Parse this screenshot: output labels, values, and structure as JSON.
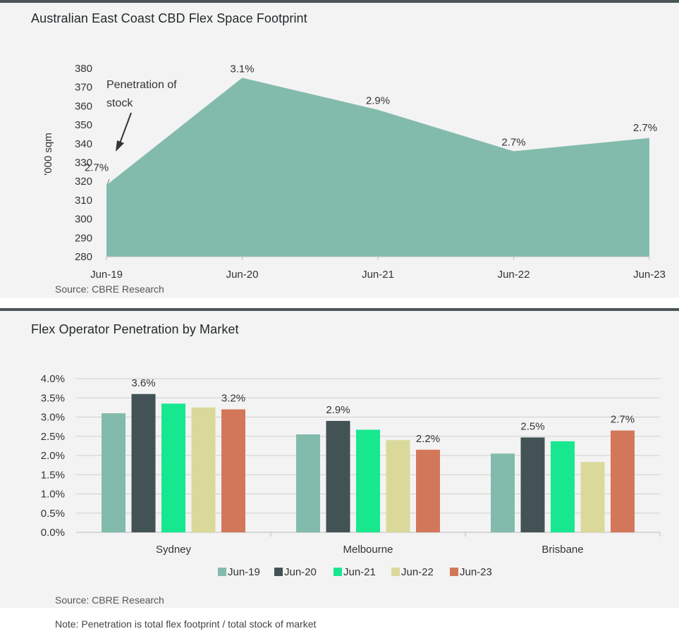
{
  "charts": {
    "area": {
      "title": "Australian East Coast CBD Flex Space Footprint",
      "source": "Source: CBRE Research",
      "annotation_line1": "Penetration of",
      "annotation_line2": "stock"
    },
    "bars": {
      "title": "Flex Operator Penetration by Market",
      "source": "Source: CBRE Research"
    }
  },
  "note": "Note: Penetration is total flex footprint / total stock of market",
  "colors": {
    "area_fill": "#82bbac",
    "jun19": "#82bbac",
    "jun20": "#435255",
    "jun21": "#17e88f",
    "jun22": "#dbd99a",
    "jun23": "#d3775a"
  },
  "chart_data": [
    {
      "type": "area",
      "title": "Australian East Coast CBD Flex Space Footprint",
      "xlabel": "",
      "ylabel": "'000 sqm",
      "categories": [
        "Jun-19",
        "Jun-20",
        "Jun-21",
        "Jun-22",
        "Jun-23"
      ],
      "values": [
        318,
        375,
        358,
        336,
        343
      ],
      "data_labels": [
        "2.7%",
        "3.1%",
        "2.9%",
        "2.7%",
        "2.7%"
      ],
      "ylim": [
        280,
        380
      ],
      "yticks": [
        280,
        290,
        300,
        310,
        320,
        330,
        340,
        350,
        360,
        370,
        380
      ],
      "grid": false
    },
    {
      "type": "bar",
      "title": "Flex Operator Penetration by Market",
      "categories": [
        "Sydney",
        "Melbourne",
        "Brisbane"
      ],
      "series": [
        {
          "name": "Jun-19",
          "values": [
            3.1,
            2.55,
            2.05
          ]
        },
        {
          "name": "Jun-20",
          "values": [
            3.6,
            2.9,
            2.47
          ]
        },
        {
          "name": "Jun-21",
          "values": [
            3.35,
            2.67,
            2.37
          ]
        },
        {
          "name": "Jun-22",
          "values": [
            3.25,
            2.4,
            1.83
          ]
        },
        {
          "name": "Jun-23",
          "values": [
            3.2,
            2.15,
            2.65
          ]
        }
      ],
      "data_labels": [
        {
          "category": "Sydney",
          "series": "Jun-20",
          "text": "3.6%"
        },
        {
          "category": "Sydney",
          "series": "Jun-23",
          "text": "3.2%"
        },
        {
          "category": "Melbourne",
          "series": "Jun-20",
          "text": "2.9%"
        },
        {
          "category": "Melbourne",
          "series": "Jun-23",
          "text": "2.2%"
        },
        {
          "category": "Brisbane",
          "series": "Jun-20",
          "text": "2.5%"
        },
        {
          "category": "Brisbane",
          "series": "Jun-23",
          "text": "2.7%"
        }
      ],
      "ylim": [
        0,
        4.0
      ],
      "yticks": [
        "0.0%",
        "0.5%",
        "1.0%",
        "1.5%",
        "2.0%",
        "2.5%",
        "3.0%",
        "3.5%",
        "4.0%"
      ],
      "grid": true,
      "legend_position": "bottom"
    }
  ]
}
